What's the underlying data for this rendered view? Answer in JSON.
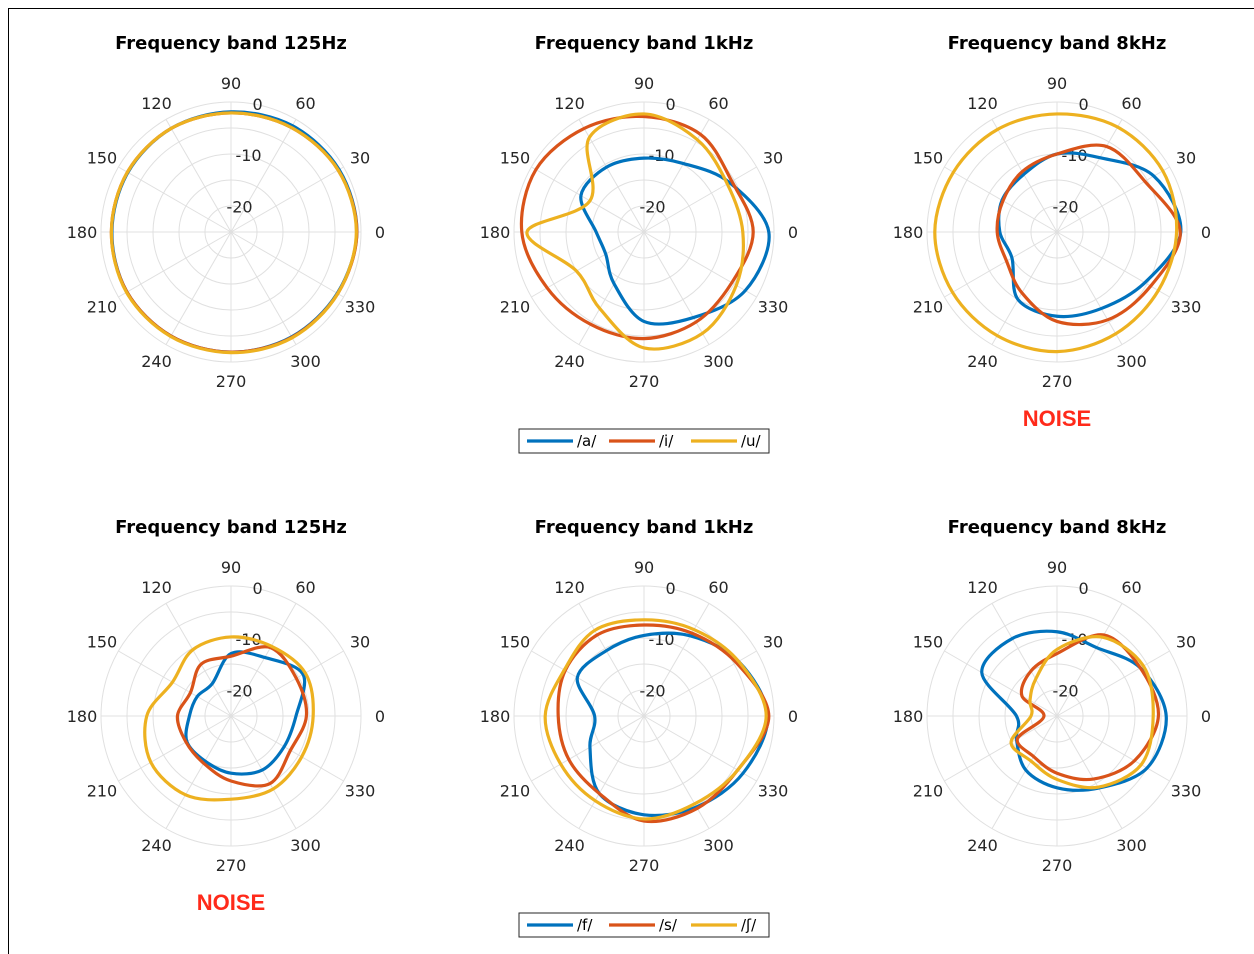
{
  "colors": {
    "a": "#0072BD",
    "b": "#D95319",
    "c": "#EDB120",
    "noise": "#FF2A1A"
  },
  "chart_data": [
    {
      "type": "polar",
      "title": "Frequency band 125Hz",
      "rlim": [
        -25,
        0
      ],
      "rticks": [
        "0",
        "-10",
        "-20"
      ],
      "theta_ticks": [
        "0",
        "30",
        "60",
        "90",
        "120",
        "150",
        "180",
        "210",
        "240",
        "270",
        "300",
        "330"
      ],
      "series": [
        {
          "values": [
            -0.8,
            -1.0,
            -1.4,
            -1.9,
            -2.0,
            -2.1,
            -2.1,
            -1.9,
            -1.9,
            -1.9,
            -1.7,
            -1.4
          ]
        },
        {
          "values": [
            -0.8,
            -1.2,
            -1.8,
            -2.1,
            -2.0,
            -2.0,
            -2.0,
            -1.9,
            -1.9,
            -1.9,
            -1.6,
            -1.3
          ]
        },
        {
          "values": [
            -0.9,
            -1.2,
            -1.8,
            -2.1,
            -2.0,
            -2.0,
            -2.0,
            -1.8,
            -1.8,
            -1.8,
            -1.5,
            -1.3
          ]
        }
      ],
      "label": ""
    },
    {
      "type": "polar",
      "title": "Frequency band 1kHz",
      "rlim": [
        -25,
        0
      ],
      "rticks": [
        "0",
        "-10",
        "-20"
      ],
      "theta_ticks": [
        "0",
        "30",
        "60",
        "90",
        "120",
        "150",
        "180",
        "210",
        "240",
        "270",
        "300",
        "330"
      ],
      "series": [
        {
          "name": "/a/",
          "values": [
            -1.0,
            -6.0,
            -9.8,
            -10.8,
            -10.6,
            -11.0,
            -15.8,
            -16.5,
            -13.5,
            -7.8,
            -6.0,
            -2.5
          ]
        },
        {
          "name": "/i/",
          "values": [
            -4.0,
            -5.5,
            -3.3,
            -2.8,
            -2.0,
            -1.0,
            -1.5,
            -3.5,
            -4.5,
            -4.5,
            -5.0,
            -5.5
          ]
        },
        {
          "name": "/u/",
          "values": [
            -6.0,
            -6.5,
            -4.5,
            -2.3,
            -4.0,
            -13.0,
            -2.5,
            -10.0,
            -8.0,
            -2.7,
            -2.5,
            -4.5
          ]
        }
      ],
      "legend": [
        "/a/",
        "/i/",
        "/u/"
      ],
      "label": ""
    },
    {
      "type": "polar",
      "title": "Frequency band 8kHz",
      "rlim": [
        -25,
        0
      ],
      "rticks": [
        "0",
        "-10",
        "-20"
      ],
      "theta_ticks": [
        "0",
        "30",
        "60",
        "90",
        "120",
        "150",
        "180",
        "210",
        "240",
        "270",
        "300",
        "330"
      ],
      "series": [
        {
          "values": [
            -1.2,
            -3.5,
            -8.5,
            -10.0,
            -12.2,
            -12.8,
            -14.0,
            -15.0,
            -10.0,
            -8.8,
            -8.0,
            -5.5
          ]
        },
        {
          "values": [
            -1.3,
            -5.5,
            -6.0,
            -10.0,
            -11.6,
            -13.0,
            -13.5,
            -13.8,
            -11.5,
            -7.8,
            -5.5,
            -4.2
          ]
        },
        {
          "values": [
            -2.0,
            -1.5,
            -1.7,
            -2.3,
            -2.2,
            -2.0,
            -1.5,
            -1.8,
            -2.0,
            -2.0,
            -2.4,
            -2.5
          ]
        }
      ],
      "label": "NOISE"
    },
    {
      "type": "polar",
      "title": "Frequency band 125Hz",
      "rlim": [
        -25,
        0
      ],
      "rticks": [
        "0",
        "-10",
        "-20"
      ],
      "theta_ticks": [
        "0",
        "30",
        "60",
        "90",
        "120",
        "150",
        "180",
        "210",
        "240",
        "270",
        "300",
        "330"
      ],
      "series": [
        {
          "values": [
            -12.5,
            -9.0,
            -12.0,
            -13.0,
            -17.8,
            -17.5,
            -17.0,
            -15.2,
            -15.0,
            -14.0,
            -13.0,
            -13.2
          ]
        },
        {
          "values": [
            -10.5,
            -10.5,
            -9.8,
            -13.5,
            -13.5,
            -16.0,
            -14.7,
            -15.0,
            -14.5,
            -12.5,
            -10.0,
            -11.8
          ]
        },
        {
          "values": [
            -9.2,
            -8.5,
            -9.5,
            -9.8,
            -10.3,
            -12.0,
            -8.8,
            -7.2,
            -7.5,
            -9.0,
            -8.8,
            -9.3
          ]
        }
      ],
      "label": "NOISE"
    },
    {
      "type": "polar",
      "title": "Frequency band 1kHz",
      "rlim": [
        -25,
        0
      ],
      "rticks": [
        "0",
        "-10",
        "-20"
      ],
      "theta_ticks": [
        "0",
        "30",
        "60",
        "90",
        "120",
        "150",
        "180",
        "210",
        "240",
        "270",
        "300",
        "330"
      ],
      "series": [
        {
          "name": "/f/",
          "values": [
            -1.2,
            -4.0,
            -7.2,
            -9.5,
            -10.5,
            -10.2,
            -15.5,
            -13.0,
            -7.8,
            -6.0,
            -4.8,
            -3.0
          ]
        },
        {
          "name": "/s/",
          "values": [
            -1.0,
            -4.5,
            -6.6,
            -7.5,
            -7.0,
            -7.5,
            -8.5,
            -8.3,
            -7.8,
            -4.8,
            -4.5,
            -4.2
          ]
        },
        {
          "name": "/ʃ/",
          "values": [
            -1.5,
            -4.0,
            -5.8,
            -6.5,
            -6.0,
            -7.3,
            -6.0,
            -6.5,
            -6.2,
            -5.2,
            -5.5,
            -4.2
          ]
        }
      ],
      "legend": [
        "/f/",
        "/s/",
        "/ʃ/"
      ],
      "label": ""
    },
    {
      "type": "polar",
      "title": "Frequency band 8kHz",
      "rlim": [
        -25,
        0
      ],
      "rticks": [
        "0",
        "-10",
        "-20"
      ],
      "theta_ticks": [
        "0",
        "30",
        "60",
        "90",
        "120",
        "150",
        "180",
        "210",
        "240",
        "270",
        "300",
        "330"
      ],
      "series": [
        {
          "values": [
            -4.0,
            -6.5,
            -9.8,
            -8.8,
            -7.8,
            -8.3,
            -17.2,
            -16.0,
            -13.0,
            -11.2,
            -9.0,
            -5.0
          ]
        },
        {
          "values": [
            -5.5,
            -6.5,
            -7.0,
            -13.0,
            -15.0,
            -17.2,
            -22.5,
            -16.2,
            -16.0,
            -14.0,
            -11.0,
            -7.8
          ]
        },
        {
          "values": [
            -6.5,
            -5.8,
            -7.5,
            -12.2,
            -16.8,
            -19.0,
            -20.0,
            -14.8,
            -15.0,
            -12.8,
            -9.2,
            -6.3
          ]
        }
      ],
      "label": ""
    }
  ]
}
